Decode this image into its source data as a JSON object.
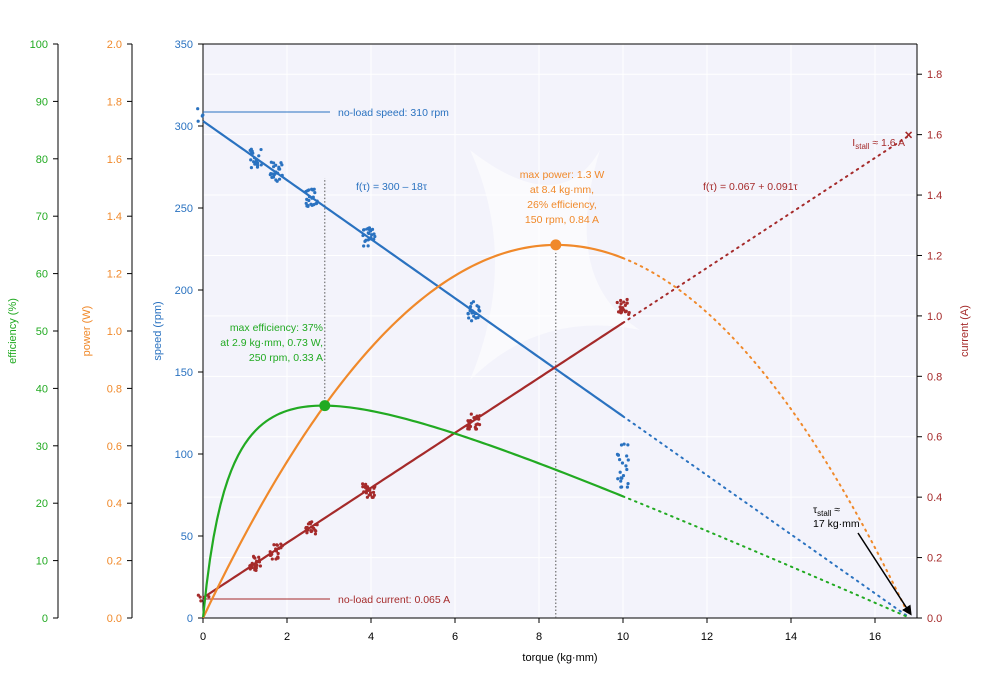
{
  "chart_data": {
    "type": "line",
    "xlabel": "torque (kg·mm)",
    "xlim": [
      0,
      17
    ],
    "x_ticks": [
      "0",
      "2",
      "4",
      "6",
      "8",
      "10",
      "12",
      "14",
      "16"
    ],
    "axes": {
      "efficiency": {
        "label": "efficiency (%)",
        "ylim": [
          0,
          100
        ],
        "ticks": [
          "0",
          "10",
          "20",
          "30",
          "40",
          "50",
          "60",
          "70",
          "80",
          "90",
          "100"
        ],
        "color": "#22aa22"
      },
      "power": {
        "label": "power (W)",
        "ylim": [
          0,
          2.0
        ],
        "ticks": [
          "0.0",
          "0.2",
          "0.4",
          "0.6",
          "0.8",
          "1.0",
          "1.2",
          "1.4",
          "1.6",
          "1.8",
          "2.0"
        ],
        "color": "#f0892a"
      },
      "speed": {
        "label": "speed (rpm)",
        "ylim": [
          0,
          350
        ],
        "ticks": [
          "0",
          "50",
          "100",
          "150",
          "200",
          "250",
          "300",
          "350"
        ],
        "color": "#2a72c0"
      },
      "current": {
        "label": "current (A)",
        "ylim": [
          0,
          1.9
        ],
        "ticks": [
          "0.0",
          "0.2",
          "0.4",
          "0.6",
          "0.8",
          "1.0",
          "1.2",
          "1.4",
          "1.6",
          "1.8"
        ],
        "color": "#a52a2a"
      }
    },
    "series": [
      {
        "name": "speed",
        "axis": "speed",
        "fit": {
          "intercept": 303,
          "slope": -18.0
        },
        "measured_to": 10,
        "extrapolated_to": 16.8
      },
      {
        "name": "current",
        "axis": "current",
        "fit": {
          "intercept": 0.067,
          "slope": 0.091
        },
        "measured_to": 10,
        "extrapolated_to": 16.8
      },
      {
        "name": "power",
        "axis": "power",
        "peak": {
          "x": 8.4,
          "y": 1.3
        },
        "measured_to": 10,
        "extrapolated_to": 16.8
      },
      {
        "name": "efficiency",
        "axis": "efficiency",
        "peak": {
          "x": 2.9,
          "y": 37
        },
        "measured_to": 10,
        "extrapolated_to": 16.8
      }
    ],
    "measured_points": {
      "speed": [
        {
          "x": 0.0,
          "y": 306
        },
        {
          "x": 1.25,
          "y": 280
        },
        {
          "x": 1.75,
          "y": 272
        },
        {
          "x": 2.6,
          "y": 257
        },
        {
          "x": 3.95,
          "y": 232
        },
        {
          "x": 6.45,
          "y": 187
        },
        {
          "x": 10.0,
          "y": 93
        }
      ],
      "current": [
        {
          "x": 0.0,
          "y": 0.065
        },
        {
          "x": 1.25,
          "y": 0.18
        },
        {
          "x": 1.75,
          "y": 0.22
        },
        {
          "x": 2.6,
          "y": 0.3
        },
        {
          "x": 3.95,
          "y": 0.42
        },
        {
          "x": 6.45,
          "y": 0.65
        },
        {
          "x": 10.0,
          "y": 1.03
        }
      ]
    },
    "annotations": {
      "no_load_speed": "no-load speed: 310 rpm",
      "no_load_current": "no-load current: 0.065 A",
      "speed_fit": "f(τ) = 300 – 18τ",
      "current_fit": "f(τ) = 0.067 + 0.091τ",
      "max_power_lines": [
        "max power: 1.3 W",
        "at 8.4 kg·mm,",
        "26% efficiency,",
        "150 rpm, 0.84 A"
      ],
      "max_eff_lines": [
        "max efficiency: 37%",
        "at 2.9 kg·mm, 0.73 W,",
        "250 rpm, 0.33 A"
      ],
      "stall_current_prefix": "I",
      "stall_current_sub": "stall",
      "stall_current_suffix": " ≈ 1.6 A",
      "stall_torque_prefix": "τ",
      "stall_torque_sub": "stall",
      "stall_torque_suffix": " ≈",
      "stall_torque_value": "17 kg·mm"
    },
    "stall": {
      "torque": 16.8,
      "current": 1.6
    },
    "grid": true,
    "background": "#f3f3fb"
  }
}
